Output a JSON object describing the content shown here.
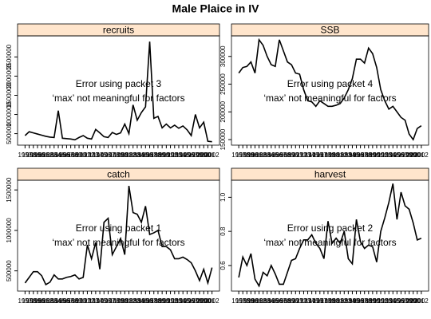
{
  "title": "Male Plaice in IV",
  "chart_data": [
    {
      "type": "line",
      "title": "recruits",
      "annotations": [
        "Error using packet 3",
        "‘max’ not meaningful for factors"
      ],
      "color": "#000000",
      "x": [
        1957,
        1958,
        1959,
        1960,
        1961,
        1962,
        1963,
        1964,
        1965,
        1966,
        1967,
        1968,
        1969,
        1970,
        1971,
        1972,
        1973,
        1974,
        1975,
        1976,
        1977,
        1978,
        1979,
        1980,
        1981,
        1982,
        1983,
        1984,
        1985,
        1986,
        1987,
        1988,
        1989,
        1990,
        1991,
        1992,
        1993,
        1994,
        1995,
        1996,
        1997,
        1998,
        1999,
        2000,
        2001,
        2002
      ],
      "values": [
        450000,
        550000,
        520000,
        490000,
        460000,
        430000,
        410000,
        400000,
        1100000,
        380000,
        370000,
        360000,
        340000,
        400000,
        450000,
        380000,
        360000,
        610000,
        520000,
        420000,
        400000,
        530000,
        480000,
        520000,
        750000,
        500000,
        1250000,
        850000,
        1050000,
        1200000,
        2900000,
        900000,
        950000,
        650000,
        750000,
        650000,
        720000,
        640000,
        700000,
        600000,
        450000,
        1000000,
        650000,
        800000,
        300000,
        290000
      ],
      "xlim": [
        1955.2,
        2003.8
      ],
      "ylim": [
        200000,
        3050000
      ],
      "yticks": [
        500000,
        1000000,
        1500000,
        2000000,
        2500000
      ]
    },
    {
      "type": "line",
      "title": "SSB",
      "annotations": [
        "Error using packet 4",
        "‘max’ not meaningful for factors"
      ],
      "color": "#000000",
      "x": [
        1957,
        1958,
        1959,
        1960,
        1961,
        1962,
        1963,
        1964,
        1965,
        1966,
        1967,
        1968,
        1969,
        1970,
        1971,
        1972,
        1973,
        1974,
        1975,
        1976,
        1977,
        1978,
        1979,
        1980,
        1981,
        1982,
        1983,
        1984,
        1985,
        1986,
        1987,
        1988,
        1989,
        1990,
        1991,
        1992,
        1993,
        1994,
        1995,
        1996,
        1997,
        1998,
        1999,
        2000,
        2001,
        2002
      ],
      "values": [
        270000,
        280000,
        282000,
        290000,
        270000,
        330000,
        320000,
        300000,
        285000,
        282000,
        330000,
        310000,
        290000,
        285000,
        270000,
        268000,
        240000,
        220000,
        218000,
        210000,
        220000,
        215000,
        210000,
        210000,
        212000,
        215000,
        225000,
        240000,
        260000,
        295000,
        295000,
        288000,
        315000,
        305000,
        280000,
        240000,
        220000,
        205000,
        210000,
        200000,
        190000,
        185000,
        160000,
        150000,
        170000,
        175000
      ],
      "xlim": [
        1955.2,
        2003.8
      ],
      "ylim": [
        140000,
        337000
      ],
      "yticks": [
        150000,
        200000,
        250000,
        300000
      ]
    },
    {
      "type": "line",
      "title": "catch",
      "annotations": [
        "Error using packet 1",
        "‘max’ not meaningful for factors"
      ],
      "color": "#000000",
      "x": [
        1957,
        1958,
        1959,
        1960,
        1961,
        1962,
        1963,
        1964,
        1965,
        1966,
        1967,
        1968,
        1969,
        1970,
        1971,
        1972,
        1973,
        1974,
        1975,
        1976,
        1977,
        1978,
        1979,
        1980,
        1981,
        1982,
        1983,
        1984,
        1985,
        1986,
        1987,
        1988,
        1989,
        1990,
        1991,
        1992,
        1993,
        1994,
        1995,
        1996,
        1997,
        1998,
        1999,
        2000,
        2001,
        2002
      ],
      "values": [
        350000,
        420000,
        490000,
        490000,
        440000,
        330000,
        360000,
        450000,
        400000,
        400000,
        420000,
        430000,
        450000,
        400000,
        420000,
        820000,
        650000,
        850000,
        520000,
        1100000,
        1150000,
        700000,
        800000,
        900000,
        700000,
        1550000,
        1220000,
        1200000,
        1100000,
        1300000,
        950000,
        970000,
        1000000,
        800000,
        800000,
        760000,
        650000,
        650000,
        670000,
        640000,
        600000,
        500000,
        380000,
        520000,
        350000,
        540000
      ],
      "xlim": [
        1955.2,
        2003.8
      ],
      "ylim": [
        250000,
        1620000
      ],
      "yticks": [
        500000,
        1000000,
        1500000
      ]
    },
    {
      "type": "line",
      "title": "harvest",
      "annotations": [
        "Error using packet 2",
        "‘max’ not meaningful for factors"
      ],
      "color": "#000000",
      "x": [
        1957,
        1958,
        1959,
        1960,
        1961,
        1962,
        1963,
        1964,
        1965,
        1966,
        1967,
        1968,
        1969,
        1970,
        1971,
        1972,
        1973,
        1974,
        1975,
        1976,
        1977,
        1978,
        1979,
        1980,
        1981,
        1982,
        1983,
        1984,
        1985,
        1986,
        1987,
        1988,
        1989,
        1990,
        1991,
        1992,
        1993,
        1994,
        1995,
        1996,
        1997,
        1998,
        1999,
        2000,
        2001,
        2002
      ],
      "values": [
        0.53,
        0.65,
        0.6,
        0.67,
        0.52,
        0.48,
        0.56,
        0.54,
        0.6,
        0.55,
        0.49,
        0.49,
        0.56,
        0.63,
        0.64,
        0.7,
        0.75,
        0.75,
        0.78,
        0.73,
        0.7,
        0.64,
        0.86,
        0.73,
        0.76,
        0.73,
        0.8,
        0.64,
        0.61,
        0.87,
        0.74,
        0.7,
        0.72,
        0.71,
        0.62,
        0.8,
        0.88,
        0.97,
        1.08,
        0.87,
        1.03,
        0.95,
        0.93,
        0.85,
        0.75,
        0.76
      ],
      "xlim": [
        1955.2,
        2003.8
      ],
      "ylim": [
        0.45,
        1.1
      ],
      "yticks": [
        0.6,
        0.8,
        {
          "value": 1,
          "label": "1.0"
        }
      ]
    }
  ]
}
